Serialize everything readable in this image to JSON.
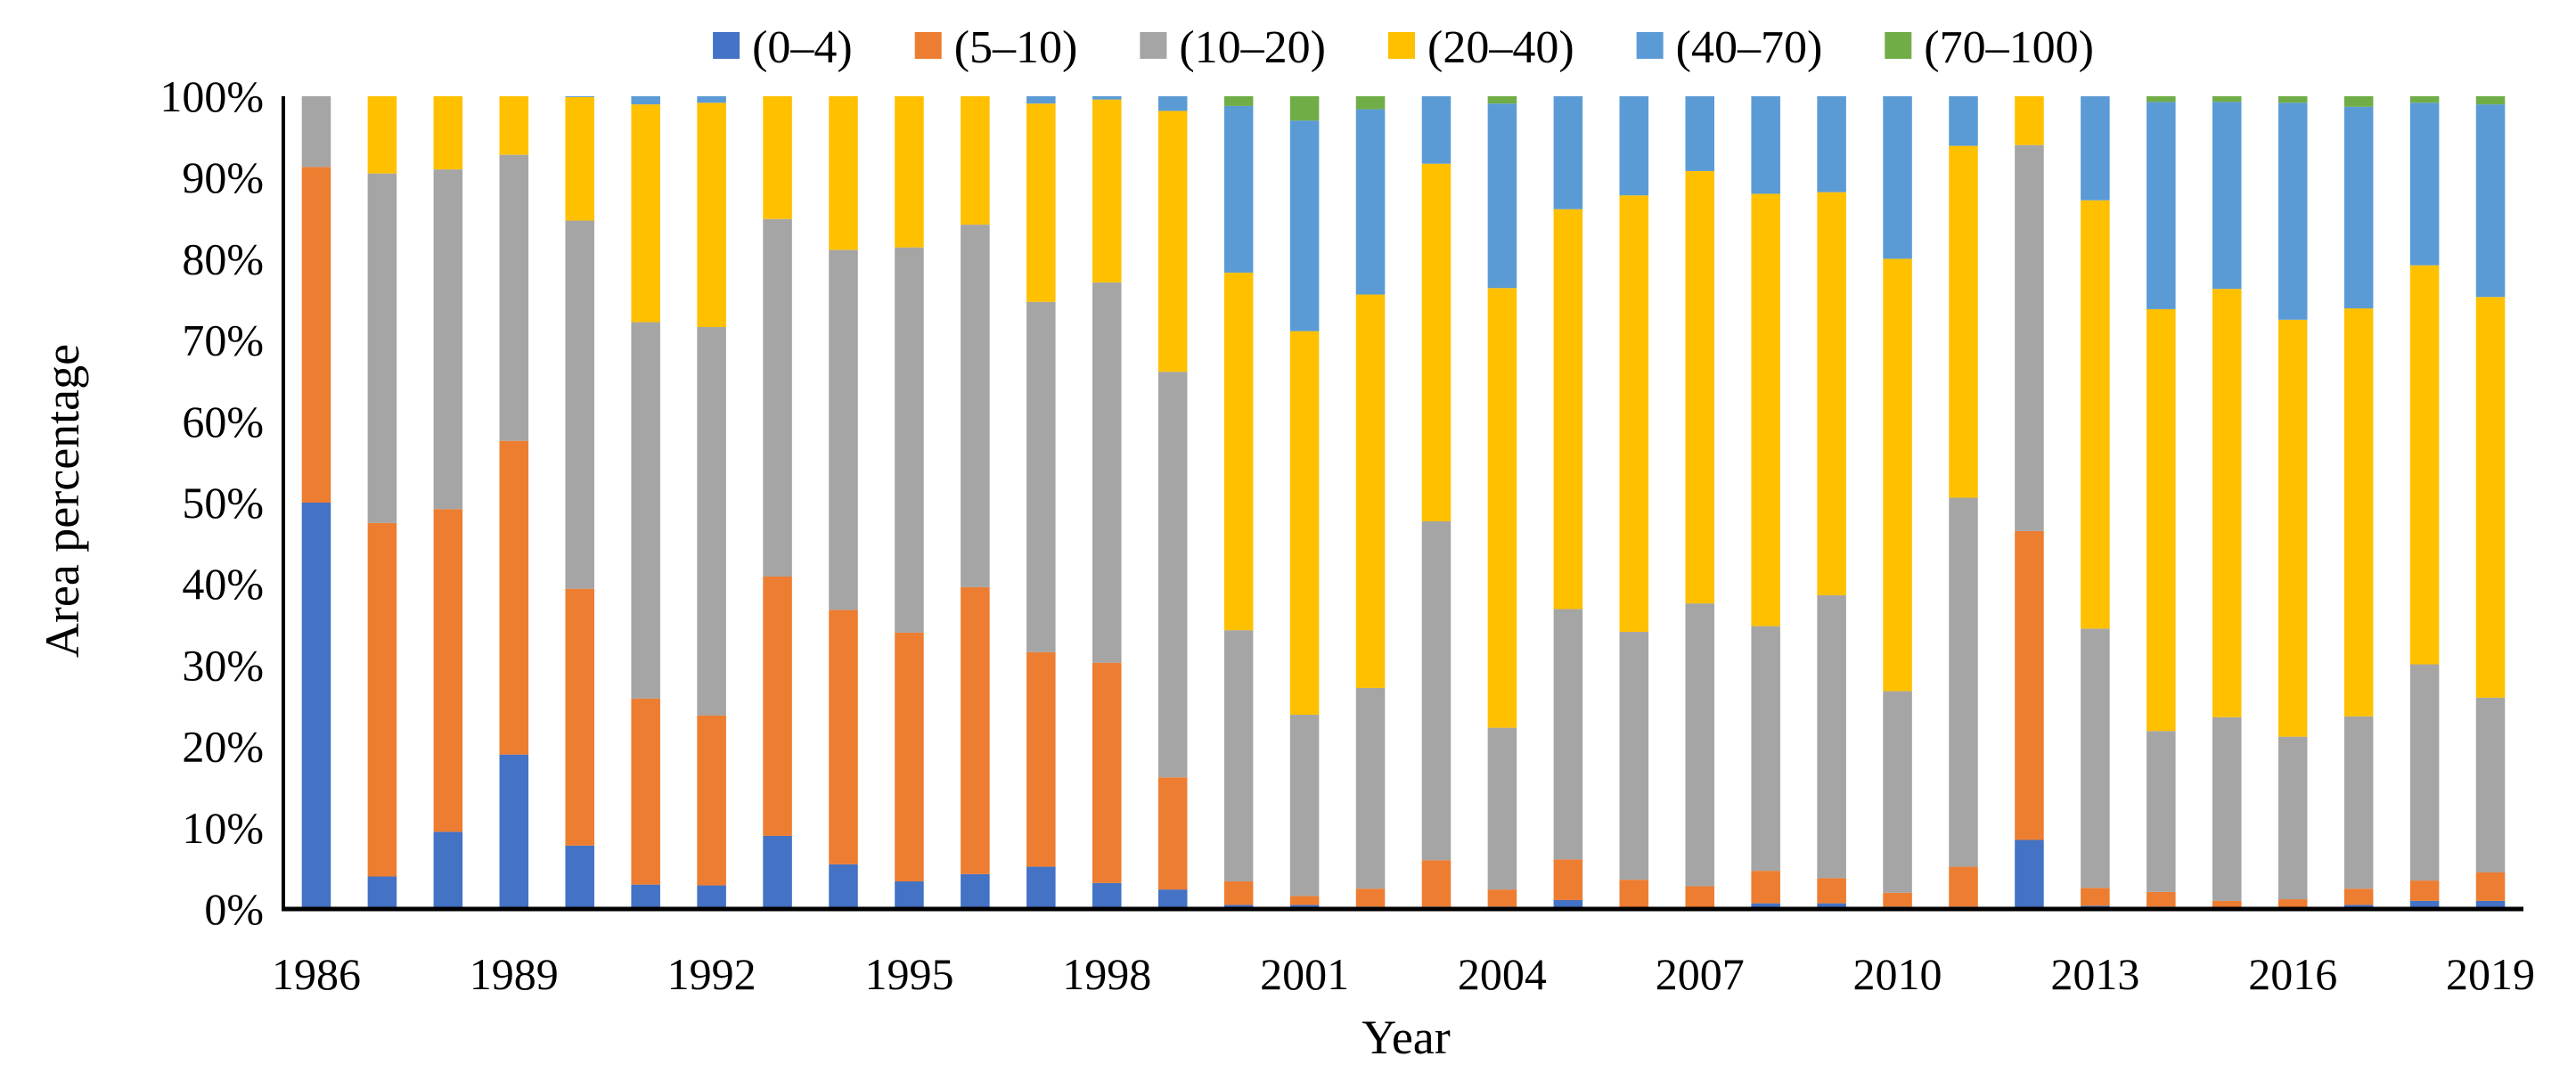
{
  "chart_data": {
    "type": "bar",
    "stacked": true,
    "title": "",
    "xlabel": "Year",
    "ylabel": "Area percentage",
    "ylim": [
      0,
      100
    ],
    "yticks": [
      "0%",
      "10%",
      "20%",
      "30%",
      "40%",
      "50%",
      "60%",
      "70%",
      "80%",
      "90%",
      "100%"
    ],
    "categories": [
      "1986",
      "1987",
      "1988",
      "1989",
      "1990",
      "1991",
      "1992",
      "1993",
      "1994",
      "1995",
      "1996",
      "1997",
      "1998",
      "1999",
      "2000",
      "2001",
      "2002",
      "2003",
      "2004",
      "2005",
      "2006",
      "2007",
      "2008",
      "2009",
      "2010",
      "2011",
      "2012",
      "2013",
      "2014",
      "2015",
      "2016",
      "2017",
      "2018",
      "2019"
    ],
    "xtick_labels": [
      "1986",
      "1989",
      "1992",
      "1995",
      "1998",
      "2001",
      "2004",
      "2007",
      "2010",
      "2013",
      "2016",
      "2019"
    ],
    "legend_position": "top",
    "series": [
      {
        "name": "(0–4)",
        "color": "#4472C4",
        "values": [
          50,
          4,
          9.5,
          19,
          7.8,
          3,
          2.9,
          9,
          5.5,
          3.4,
          4.3,
          5.2,
          3.2,
          2.4,
          0.5,
          0.5,
          0.3,
          0.3,
          0.3,
          1.1,
          0.2,
          0.2,
          0.7,
          0.7,
          0.3,
          0.3,
          8.5,
          0.4,
          0.3,
          0.2,
          0.2,
          0.5,
          1,
          1
        ]
      },
      {
        "name": "(5–10)",
        "color": "#ED7D31",
        "values": [
          41.3,
          43.5,
          39.7,
          38.6,
          31.6,
          22.9,
          20.9,
          31.9,
          31.3,
          30.6,
          35.3,
          26.4,
          27.1,
          13.8,
          2.9,
          1.1,
          2.2,
          5.7,
          2.1,
          5,
          3.4,
          2.6,
          4,
          3.1,
          1.7,
          4.9,
          38,
          2.2,
          1.8,
          0.8,
          1,
          2,
          2.5,
          3.5
        ]
      },
      {
        "name": "(10–20)",
        "color": "#A5A5A5",
        "values": [
          8.7,
          43,
          41.8,
          35.2,
          45.3,
          46.3,
          47.8,
          44,
          44.3,
          47.4,
          44.6,
          43.1,
          46.8,
          49.9,
          30.9,
          22.3,
          24.7,
          41.7,
          19.9,
          30.8,
          30.5,
          34.8,
          30.1,
          34.8,
          24.8,
          45.4,
          47.5,
          31.9,
          19.8,
          22.6,
          20,
          21.2,
          26.6,
          21.5
        ]
      },
      {
        "name": "(20–40)",
        "color": "#FFC000",
        "values": [
          0,
          10,
          9,
          7.2,
          15.2,
          26.8,
          27.6,
          15.1,
          18.9,
          18.6,
          15.8,
          24.4,
          22.5,
          32.1,
          44,
          47.2,
          48.4,
          44,
          54.1,
          49.2,
          53.7,
          53.2,
          53.2,
          49.6,
          53.2,
          43.3,
          6,
          52.7,
          51.9,
          52.7,
          51.3,
          50.2,
          49.1,
          49.3
        ]
      },
      {
        "name": "(40–70)",
        "color": "#5B9BD5",
        "values": [
          0,
          0,
          0,
          0,
          0.5,
          1,
          0.8,
          0,
          0,
          0,
          0,
          0.9,
          0.4,
          1.8,
          20.5,
          25.9,
          22.8,
          8.3,
          22.7,
          13.9,
          12.2,
          9.2,
          12,
          11.8,
          20,
          6.1,
          0,
          13,
          25.5,
          23,
          26.7,
          24.8,
          20,
          23.7
        ]
      },
      {
        "name": "(70–100)",
        "color": "#70AD47",
        "values": [
          0,
          0,
          0,
          0,
          0,
          0,
          0,
          0,
          0,
          0,
          0,
          0,
          0,
          0,
          1.2,
          3,
          1.6,
          0,
          0.9,
          0,
          0,
          0,
          0,
          0,
          0,
          0,
          0,
          0,
          0.7,
          0.7,
          0.8,
          1.3,
          0.8,
          1
        ]
      }
    ]
  }
}
